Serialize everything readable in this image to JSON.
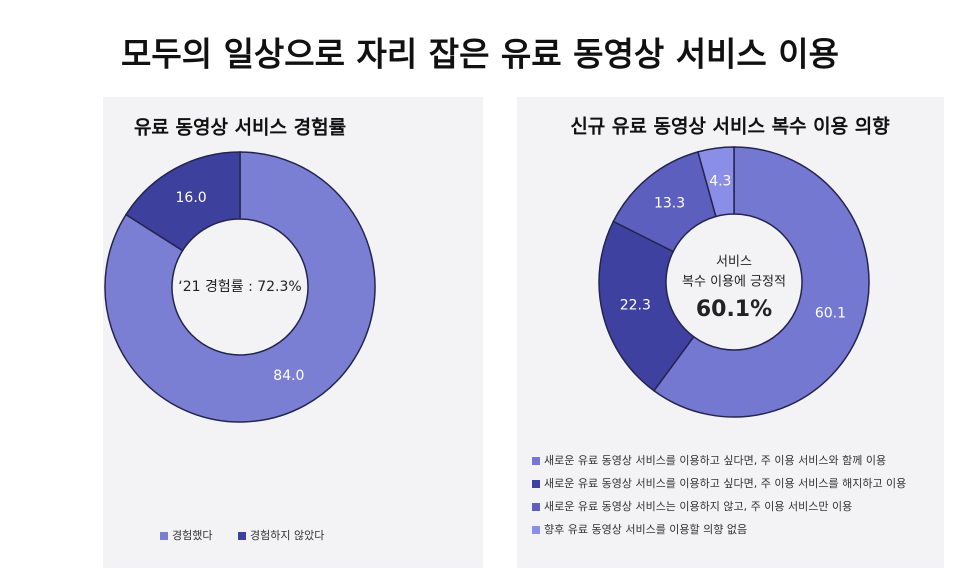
{
  "title": "모두의 일상으로 자리 잡은 유료 동영상 서비스 이용",
  "chart_data": [
    {
      "type": "donut",
      "title": "유료 동영상 서비스 경험률",
      "categories": [
        "경험했다",
        "경험하지 않았다"
      ],
      "values": [
        84.0,
        16.0
      ],
      "value_labels": [
        "84.0",
        "16.0"
      ],
      "colors": [
        "#7b7fd4",
        "#3e409e"
      ],
      "center_lines": [
        "‘21 경험률 : 72.3%"
      ],
      "legend": "bottom-row"
    },
    {
      "type": "donut",
      "title": "신규 유료 동영상 서비스 복수 이용 의향",
      "categories": [
        "새로운 유료 동영상 서비스를 이용하고 싶다면, 주 이용 서비스와 함께 이용",
        "새로운 유료 동영상 서비스를 이용하고 싶다면, 주 이용 서비스를 해지하고 이용",
        "새로운 유료 동영상 서비스는 이용하지 않고, 주 이용 서비스만 이용",
        "향후 유료 동영상 서비스를 이용할 의향 없음"
      ],
      "values": [
        60.1,
        22.3,
        13.3,
        4.3
      ],
      "value_labels": [
        "60.1",
        "22.3",
        "13.3",
        "4.3"
      ],
      "colors": [
        "#7478d0",
        "#3f41a0",
        "#5d5fbf",
        "#8a8ee6"
      ],
      "center_lines": [
        "서비스",
        "복수 이용에 긍정적",
        "60.1%"
      ],
      "legend": "bottom-column"
    }
  ]
}
